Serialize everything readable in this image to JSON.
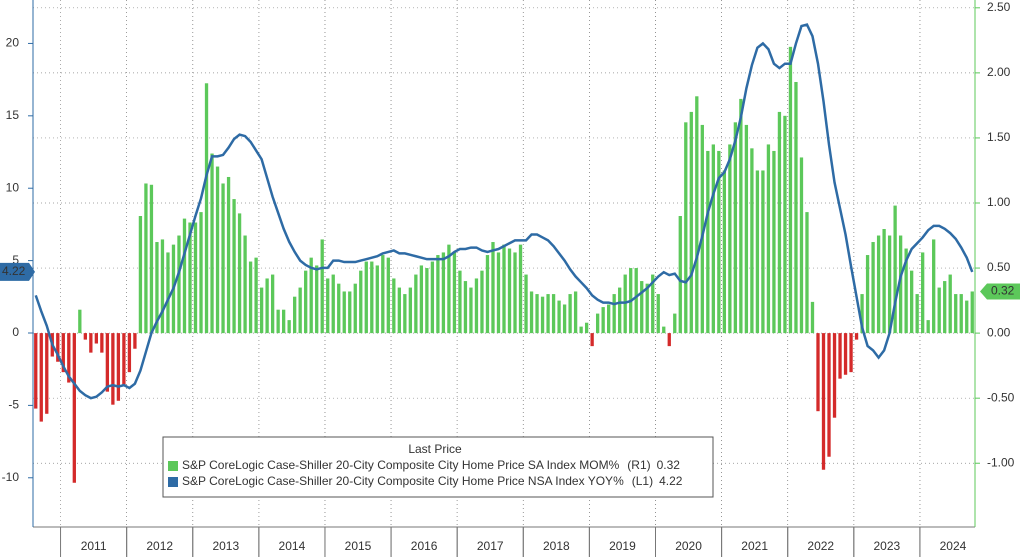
{
  "chart_data": {
    "type": "bar_line",
    "legend_title": "Last Price",
    "categories": [
      null,
      null,
      null,
      null,
      null,
      null,
      null,
      null,
      null,
      null,
      null,
      "2011",
      null,
      null,
      null,
      null,
      null,
      null,
      null,
      null,
      null,
      null,
      null,
      "2012",
      null,
      null,
      null,
      null,
      null,
      null,
      null,
      null,
      null,
      null,
      null,
      "2013",
      null,
      null,
      null,
      null,
      null,
      null,
      null,
      null,
      null,
      null,
      null,
      "2014",
      null,
      null,
      null,
      null,
      null,
      null,
      null,
      null,
      null,
      null,
      null,
      "2015",
      null,
      null,
      null,
      null,
      null,
      null,
      null,
      null,
      null,
      null,
      null,
      "2016",
      null,
      null,
      null,
      null,
      null,
      null,
      null,
      null,
      null,
      null,
      null,
      "2017",
      null,
      null,
      null,
      null,
      null,
      null,
      null,
      null,
      null,
      null,
      null,
      "2018",
      null,
      null,
      null,
      null,
      null,
      null,
      null,
      null,
      null,
      null,
      null,
      "2019",
      null,
      null,
      null,
      null,
      null,
      null,
      null,
      null,
      null,
      null,
      null,
      "2020",
      null,
      null,
      null,
      null,
      null,
      null,
      null,
      null,
      null,
      null,
      null,
      "2021",
      null,
      null,
      null,
      null,
      null,
      null,
      null,
      null,
      null,
      null,
      null,
      "2022",
      null,
      null,
      null,
      null,
      null,
      null,
      null,
      null,
      null,
      null,
      null,
      "2023",
      null,
      null,
      null,
      null,
      null,
      null,
      null,
      null,
      null,
      null,
      null,
      "2024",
      null,
      null,
      null
    ],
    "series": [
      {
        "name": "S&P CoreLogic Case-Shiller 20-City Composite City Home Price SA Index MOM%",
        "axis_name": "(R1)",
        "axis": "y2",
        "kind": "bar",
        "color": "#5cc85a",
        "negative_color": "#d42a2a",
        "values": [
          -0.58,
          -0.68,
          -0.62,
          -0.18,
          -0.22,
          -0.3,
          -0.38,
          -1.15,
          0.18,
          -0.05,
          -0.15,
          -0.08,
          -0.15,
          -0.45,
          -0.55,
          -0.52,
          -0.4,
          -0.3,
          -0.12,
          0.9,
          1.15,
          1.14,
          0.7,
          0.72,
          0.62,
          0.68,
          0.75,
          0.88,
          0.85,
          0.85,
          0.93,
          1.92,
          1.38,
          1.28,
          1.15,
          1.2,
          1.03,
          0.92,
          0.75,
          0.55,
          0.58,
          0.35,
          0.42,
          0.45,
          0.18,
          0.18,
          0.1,
          0.28,
          0.35,
          0.48,
          0.58,
          0.52,
          0.72,
          0.42,
          0.45,
          0.38,
          0.32,
          0.32,
          0.38,
          0.48,
          0.55,
          0.55,
          0.52,
          0.6,
          0.58,
          0.42,
          0.35,
          0.3,
          0.35,
          0.45,
          0.52,
          0.5,
          0.55,
          0.6,
          0.62,
          0.68,
          0.62,
          0.48,
          0.4,
          0.35,
          0.42,
          0.48,
          0.6,
          0.7,
          0.62,
          0.68,
          0.65,
          0.62,
          0.68,
          0.45,
          0.32,
          0.3,
          0.28,
          0.3,
          0.3,
          0.25,
          0.22,
          0.3,
          0.32,
          0.05,
          0.08,
          -0.1,
          0.15,
          0.2,
          0.22,
          0.3,
          0.35,
          0.45,
          0.5,
          0.5,
          0.4,
          0.38,
          0.45,
          0.3,
          0.05,
          -0.1,
          0.15,
          0.9,
          1.62,
          1.7,
          1.82,
          1.6,
          1.4,
          1.45,
          1.4,
          1.25,
          1.45,
          1.62,
          1.8,
          1.6,
          1.42,
          1.25,
          1.25,
          1.45,
          1.4,
          1.7,
          1.67,
          2.2,
          1.93,
          1.35,
          0.93,
          0.24,
          -0.6,
          -1.05,
          -0.95,
          -0.65,
          -0.35,
          -0.32,
          -0.3,
          -0.05,
          0.3,
          0.6,
          0.7,
          0.75,
          0.8,
          0.75,
          0.98,
          0.75,
          0.65,
          0.48,
          0.3,
          0.62,
          0.1,
          0.72,
          0.35,
          0.4,
          0.45,
          0.3,
          0.3,
          0.25,
          0.32
        ]
      },
      {
        "name": "S&P CoreLogic Case-Shiller 20-City Composite City Home Price NSA Index YOY%",
        "axis_name": "(L1)",
        "axis": "y",
        "kind": "line",
        "color": "#2e6ba5",
        "values": [
          2.6,
          1.5,
          0.5,
          -0.8,
          -1.5,
          -2.3,
          -3.0,
          -3.5,
          -4.0,
          -4.3,
          -4.5,
          -4.4,
          -4.1,
          -3.7,
          -3.6,
          -3.7,
          -3.6,
          -3.8,
          -3.5,
          -2.6,
          -1.3,
          0.0,
          0.8,
          1.5,
          2.3,
          3.1,
          4.2,
          5.5,
          6.8,
          8.1,
          9.3,
          10.9,
          12.2,
          12.2,
          12.3,
          12.8,
          13.4,
          13.7,
          13.6,
          13.2,
          12.6,
          12.0,
          10.7,
          9.4,
          8.3,
          7.2,
          6.3,
          5.6,
          5.0,
          4.7,
          4.5,
          4.4,
          4.5,
          4.5,
          5.0,
          5.0,
          4.9,
          4.9,
          4.9,
          5.0,
          5.1,
          5.2,
          5.3,
          5.5,
          5.6,
          5.7,
          5.5,
          5.5,
          5.4,
          5.3,
          5.2,
          5.1,
          5.1,
          5.1,
          5.1,
          5.3,
          5.6,
          5.8,
          5.8,
          5.9,
          5.9,
          5.7,
          5.6,
          5.7,
          5.8,
          6.0,
          6.2,
          6.4,
          6.4,
          6.4,
          6.8,
          6.8,
          6.6,
          6.4,
          6.0,
          5.5,
          5.0,
          4.4,
          3.9,
          3.5,
          3.1,
          2.6,
          2.3,
          2.1,
          2.1,
          2.0,
          2.1,
          2.1,
          2.2,
          2.5,
          2.8,
          3.1,
          3.5,
          3.9,
          4.2,
          4.0,
          4.1,
          3.6,
          3.5,
          4.0,
          5.2,
          6.7,
          8.3,
          9.6,
          10.7,
          11.1,
          12.0,
          13.3,
          14.9,
          16.9,
          18.5,
          19.7,
          20.0,
          19.6,
          18.6,
          18.3,
          18.6,
          18.6,
          20.0,
          21.2,
          21.3,
          20.5,
          18.6,
          16.0,
          13.0,
          10.4,
          8.6,
          6.8,
          4.6,
          2.5,
          0.4,
          -0.9,
          -1.2,
          -1.7,
          -1.2,
          0.0,
          2.1,
          3.9,
          5.0,
          5.8,
          6.2,
          6.6,
          7.1,
          7.4,
          7.4,
          7.2,
          6.9,
          6.5,
          5.9,
          5.2,
          4.22
        ]
      }
    ],
    "ylim": [
      -13.4,
      23.0
    ],
    "yticks": [
      -10,
      -5,
      0,
      5,
      10,
      15,
      20
    ],
    "y2lim": [
      -1.49,
      2.56
    ],
    "y2ticks": [
      {
        "value": -1,
        "label": "-1.00"
      },
      {
        "value": -0.5,
        "label": "-0.50"
      },
      {
        "value": 0,
        "label": "0.00"
      },
      {
        "value": 0.5,
        "label": "0.50"
      },
      {
        "value": 1,
        "label": "1.00"
      },
      {
        "value": 1.5,
        "label": "1.50"
      },
      {
        "value": 2,
        "label": "2.00"
      },
      {
        "value": 2.5,
        "label": "2.50"
      }
    ],
    "grid": "y2",
    "y_axis_color": "#2e6ba5",
    "y2_axis_color": "#5cc85a"
  }
}
